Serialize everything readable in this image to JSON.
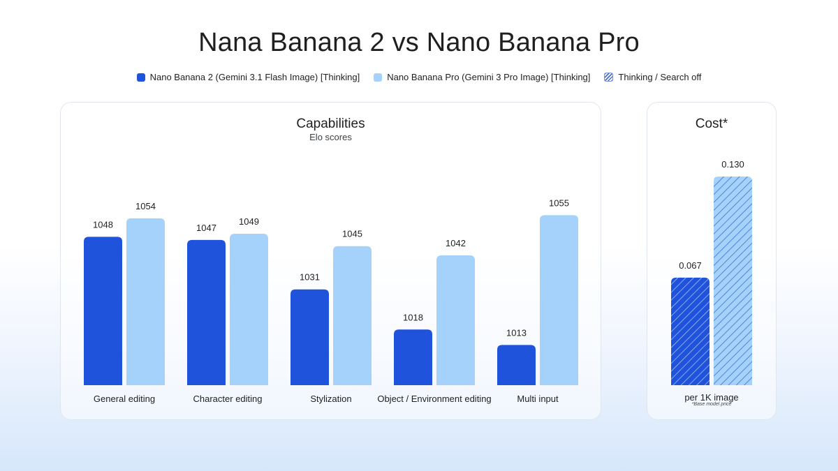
{
  "title": "Nana Banana 2 vs Nano Banana Pro",
  "legend": [
    {
      "label": "Nano Banana 2 (Gemini 3.1 Flash Image) [Thinking]",
      "color": "#1f53dc",
      "style": "solid"
    },
    {
      "label": "Nano Banana Pro (Gemini 3 Pro Image) [Thinking]",
      "color": "#a4d2fb",
      "style": "solid"
    },
    {
      "label": "Thinking / Search off",
      "color": "#4a6fcf",
      "style": "hatched"
    }
  ],
  "capabilities": {
    "title": "Capabilities",
    "subtitle": "Elo scores"
  },
  "cost": {
    "title": "Cost*",
    "footnote": "*Base model price"
  },
  "chart_data": [
    {
      "type": "bar",
      "title": "Capabilities",
      "subtitle": "Elo scores",
      "categories": [
        "General editing",
        "Character editing",
        "Stylization",
        "Object / Environment editing",
        "Multi input"
      ],
      "series": [
        {
          "name": "Nano Banana 2 (Gemini 3.1 Flash Image) [Thinking]",
          "color": "#1f53dc",
          "values": [
            1048,
            1047,
            1031,
            1018,
            1013
          ]
        },
        {
          "name": "Nano Banana Pro (Gemini 3 Pro Image) [Thinking]",
          "color": "#a4d2fb",
          "values": [
            1054,
            1049,
            1045,
            1042,
            1055
          ]
        }
      ],
      "ylim": [
        1000,
        1070
      ],
      "grid": false,
      "legend_position": "top"
    },
    {
      "type": "bar",
      "title": "Cost*",
      "categories": [
        "per 1K image"
      ],
      "series": [
        {
          "name": "Nano Banana 2 (Gemini 3.1 Flash Image) [Thinking]",
          "color": "#1f53dc",
          "pattern": "hatched",
          "values": [
            0.067
          ]
        },
        {
          "name": "Nano Banana Pro (Gemini 3 Pro Image) [Thinking]",
          "color": "#a4d2fb",
          "pattern": "hatched",
          "values": [
            0.13
          ]
        }
      ],
      "ylim": [
        0,
        0.15
      ],
      "grid": false
    }
  ]
}
